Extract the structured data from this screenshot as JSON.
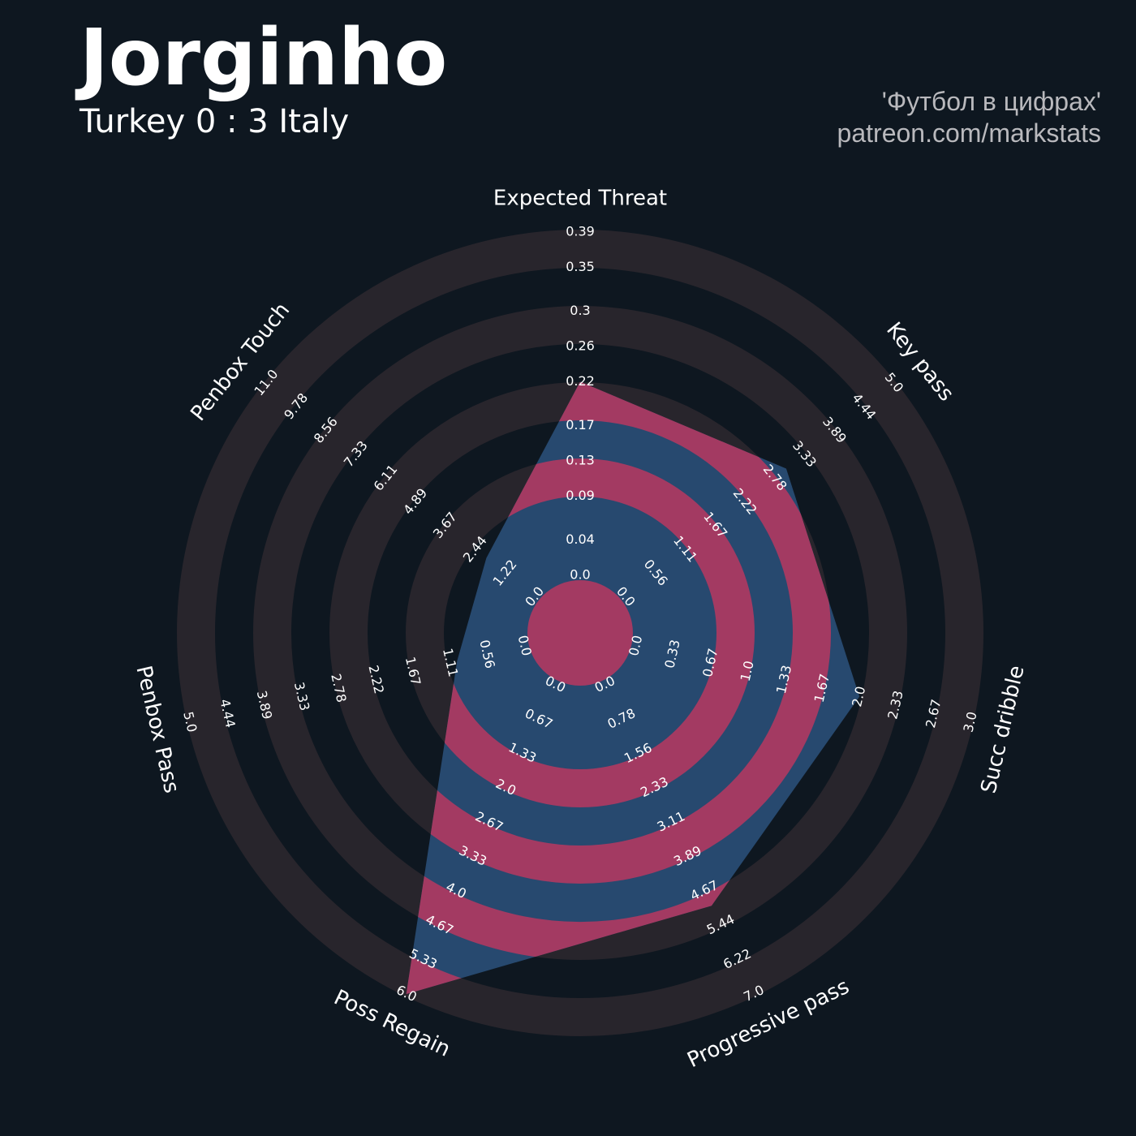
{
  "chart_data": {
    "type": "radar",
    "title": "Jorginho",
    "subtitle": "Turkey 0 : 3 Italy",
    "annotations": [
      "'Футбол в цифрах'",
      "patreon.com/markstats"
    ],
    "categories": [
      "Expected Threat",
      "Key pass",
      "Succ dribble",
      "Progressive pass",
      "Poss Regain",
      "Penbox Pass",
      "Penbox Touch"
    ],
    "axes": [
      {
        "lim": [
          0,
          0.39
        ],
        "ticks": [
          {
            "value": 0,
            "label": "0.0"
          },
          0.04,
          0.09,
          0.13,
          0.17,
          0.22,
          0.26,
          0.3,
          0.35,
          0.39
        ]
      },
      {
        "lim": [
          0,
          5
        ],
        "ticks": [
          {
            "value": 0,
            "label": "0.0"
          },
          0.56,
          1.11,
          1.67,
          2.22,
          2.78,
          3.33,
          3.89,
          4.44,
          {
            "value": 5,
            "label": "5.0"
          }
        ]
      },
      {
        "lim": [
          0,
          3
        ],
        "ticks": [
          {
            "value": 0,
            "label": "0.0"
          },
          0.33,
          0.67,
          {
            "value": 1,
            "label": "1.0"
          },
          1.33,
          1.67,
          {
            "value": 2,
            "label": "2.0"
          },
          2.33,
          2.67,
          {
            "value": 3,
            "label": "3.0"
          }
        ]
      },
      {
        "lim": [
          0,
          7
        ],
        "ticks": [
          {
            "value": 0,
            "label": "0.0"
          },
          0.78,
          1.56,
          2.33,
          3.11,
          3.89,
          4.67,
          5.44,
          6.22,
          {
            "value": 7,
            "label": "7.0"
          }
        ]
      },
      {
        "lim": [
          0,
          6
        ],
        "ticks": [
          {
            "value": 0,
            "label": "0.0"
          },
          0.67,
          1.33,
          {
            "value": 2,
            "label": "2.0"
          },
          2.67,
          3.33,
          {
            "value": 4,
            "label": "4.0"
          },
          4.67,
          5.33,
          {
            "value": 6,
            "label": "6.0"
          }
        ]
      },
      {
        "lim": [
          0,
          5
        ],
        "ticks": [
          {
            "value": 0,
            "label": "0.0"
          },
          0.56,
          1.11,
          1.67,
          2.22,
          2.78,
          3.33,
          3.89,
          4.44,
          {
            "value": 5,
            "label": "5.0"
          }
        ]
      },
      {
        "lim": [
          0,
          11
        ],
        "ticks": [
          {
            "value": 0,
            "label": "0.0"
          },
          1.22,
          2.44,
          3.67,
          4.89,
          6.11,
          7.33,
          8.56,
          9.78,
          {
            "value": 11,
            "label": "11.0"
          }
        ]
      }
    ],
    "series": [
      {
        "color": "#27496f",
        "values": [
          0.22,
          3.0,
          2.0,
          5.0,
          6.0,
          1.0,
          2.0
        ]
      }
    ],
    "highlight_color": "#a33a62",
    "ring_color": "#28252c",
    "background": "#0e1720"
  }
}
